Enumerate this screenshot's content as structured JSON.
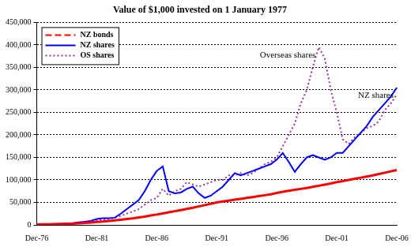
{
  "chart_data": {
    "type": "line",
    "title": "Value of $1,000 invested on 1 January 1977",
    "categories": [
      "Dec-76",
      null,
      null,
      null,
      null,
      null,
      null,
      null,
      null,
      null,
      "Dec-81",
      null,
      null,
      null,
      null,
      null,
      null,
      null,
      null,
      null,
      "Dec-86",
      null,
      null,
      null,
      null,
      null,
      null,
      null,
      null,
      null,
      "Dec-91",
      null,
      null,
      null,
      null,
      null,
      null,
      null,
      null,
      null,
      "Dec-96",
      null,
      null,
      null,
      null,
      null,
      null,
      null,
      null,
      null,
      "Dec-01",
      null,
      null,
      null,
      null,
      null,
      null,
      null,
      null,
      null,
      "Dec-06"
    ],
    "series": [
      {
        "name": "NZ bonds",
        "color": "#ff0000",
        "line_style": "dashed",
        "values": [
          1000,
          1150,
          1350,
          1600,
          1900,
          2300,
          2800,
          3400,
          4200,
          5200,
          6500,
          7600,
          8800,
          10000,
          11500,
          13000,
          14500,
          16500,
          18500,
          21000,
          23000,
          25500,
          28000,
          30500,
          33000,
          35500,
          38000,
          41000,
          44000,
          47000,
          50000,
          52000,
          54000,
          56000,
          58000,
          60000,
          62000,
          64000,
          66000,
          68000,
          71000,
          73500,
          76000,
          78000,
          80000,
          82000,
          84500,
          87000,
          89500,
          92000,
          95000,
          97500,
          100000,
          102500,
          105000,
          107500,
          110000,
          113000,
          116000,
          119000,
          122000
        ]
      },
      {
        "name": "NZ shares",
        "color": "#0000ff",
        "line_style": "solid",
        "values": [
          1000,
          1200,
          1500,
          2000,
          2500,
          3200,
          4000,
          5500,
          7000,
          9000,
          13000,
          15000,
          15000,
          16000,
          25000,
          35000,
          45000,
          55000,
          75000,
          100000,
          120000,
          130000,
          75000,
          70000,
          72000,
          80000,
          85000,
          70000,
          60000,
          65000,
          75000,
          85000,
          100000,
          115000,
          110000,
          115000,
          120000,
          125000,
          130000,
          135000,
          145000,
          160000,
          140000,
          118000,
          135000,
          150000,
          155000,
          150000,
          145000,
          150000,
          160000,
          160000,
          175000,
          190000,
          205000,
          220000,
          240000,
          255000,
          270000,
          285000,
          305000
        ]
      },
      {
        "name": "OS shares",
        "color": "#993399",
        "line_style": "dotted",
        "values": [
          1000,
          1100,
          1300,
          1500,
          2000,
          2500,
          3500,
          5000,
          6500,
          8000,
          10000,
          11000,
          13000,
          16000,
          20000,
          25000,
          30000,
          35000,
          45000,
          55000,
          60000,
          80000,
          65000,
          75000,
          80000,
          95000,
          90000,
          85000,
          90000,
          95000,
          100000,
          100000,
          110000,
          110000,
          115000,
          110000,
          115000,
          125000,
          135000,
          140000,
          150000,
          175000,
          200000,
          225000,
          270000,
          300000,
          350000,
          395000,
          370000,
          300000,
          250000,
          190000,
          180000,
          195000,
          205000,
          215000,
          220000,
          230000,
          255000,
          270000,
          290000
        ]
      }
    ],
    "annotations": [
      {
        "text": "NZ shares",
        "series": "NZ shares"
      },
      {
        "text": "Overseas shares",
        "series": "OS shares"
      }
    ],
    "ylim": [
      0,
      450000
    ],
    "yticks": [
      0,
      {
        "value": 50000,
        "label": "50,000"
      },
      {
        "value": 100000,
        "label": "100,000"
      },
      {
        "value": 150000,
        "label": "150,000"
      },
      {
        "value": 200000,
        "label": "200,000"
      },
      {
        "value": 250000,
        "label": "250,000"
      },
      {
        "value": 300000,
        "label": "300,000"
      },
      {
        "value": 350000,
        "label": "350,000"
      },
      {
        "value": 400000,
        "label": "400,000"
      },
      {
        "value": 450000,
        "label": "450,000"
      }
    ],
    "grid": true,
    "legend": "top-left"
  }
}
